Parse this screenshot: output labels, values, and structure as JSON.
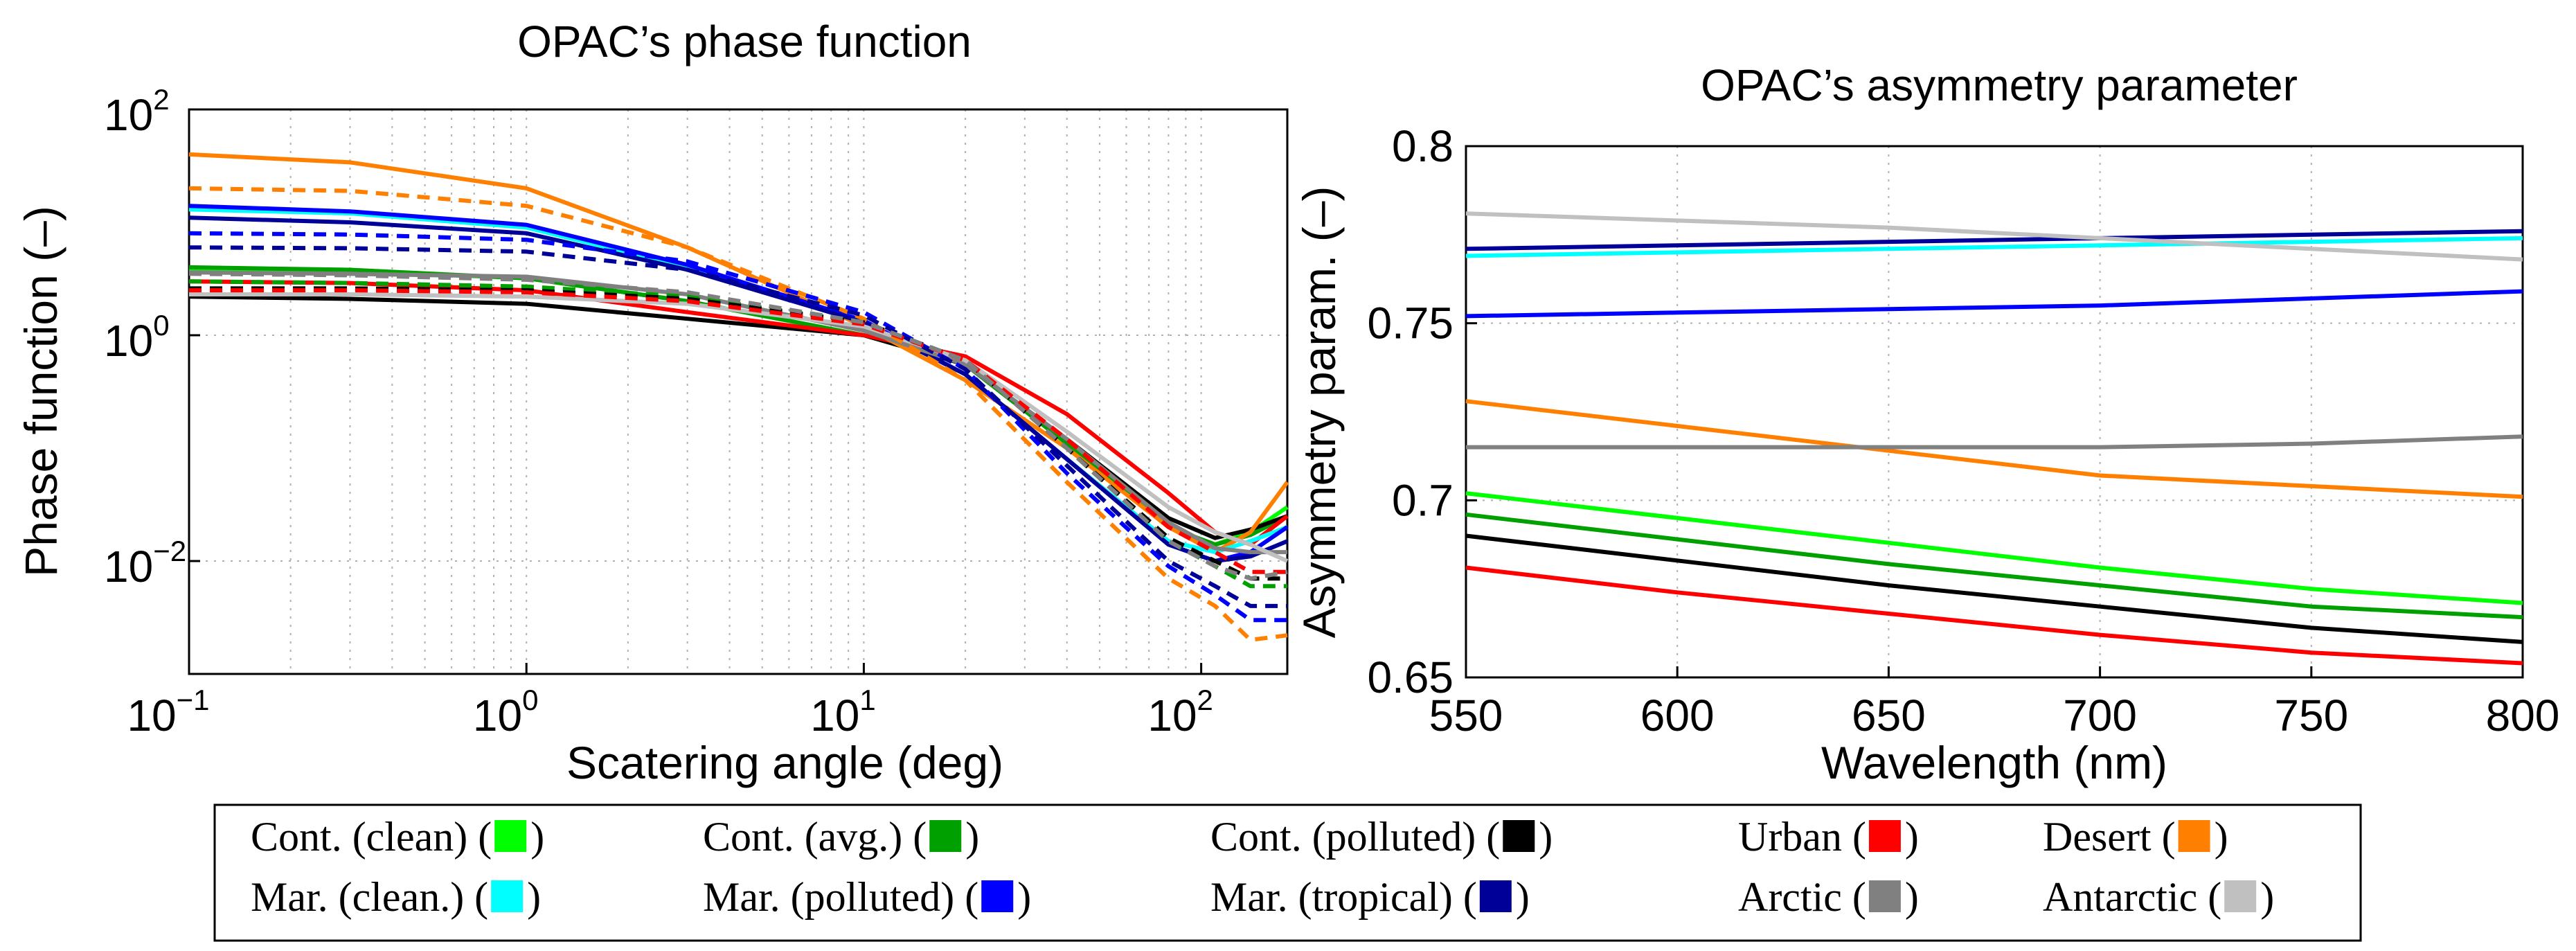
{
  "chart_data": [
    {
      "type": "line",
      "title": "OPAC’s phase function",
      "xlabel": "Scatering angle (deg)",
      "ylabel": "Phase function (–)",
      "xscale": "log",
      "yscale": "log",
      "xlim": [
        0.1,
        180
      ],
      "ylim": [
        0.001,
        100
      ],
      "xticks": [
        {
          "value": 0.1,
          "base": "10",
          "exp": "−1"
        },
        {
          "value": 1,
          "base": "10",
          "exp": "0"
        },
        {
          "value": 10,
          "base": "10",
          "exp": "1"
        },
        {
          "value": 100,
          "base": "10",
          "exp": "2"
        }
      ],
      "yticks": [
        {
          "value": 0.01,
          "base": "10",
          "exp": "−2"
        },
        {
          "value": 1,
          "base": "10",
          "exp": "0"
        },
        {
          "value": 100,
          "base": "10",
          "exp": "2"
        }
      ],
      "x": [
        0.1,
        0.3,
        1,
        3,
        10,
        20,
        40,
        80,
        110,
        140,
        180
      ],
      "series": [
        {
          "name": "Cont. (clean)",
          "style": "solid",
          "values": [
            3.8,
            3.7,
            3.2,
            2.0,
            1.0,
            0.55,
            0.11,
            0.02,
            0.014,
            0.018,
            0.03
          ]
        },
        {
          "name": "Cont. (avg.)",
          "style": "solid",
          "values": [
            4.0,
            3.8,
            3.2,
            2.0,
            1.0,
            0.55,
            0.11,
            0.02,
            0.014,
            0.017,
            0.025
          ]
        },
        {
          "name": "Cont. (polluted)",
          "style": "solid",
          "values": [
            2.2,
            2.1,
            1.9,
            1.4,
            1.0,
            0.55,
            0.12,
            0.024,
            0.016,
            0.019,
            0.025
          ]
        },
        {
          "name": "Urban",
          "style": "solid",
          "values": [
            3.0,
            2.9,
            2.5,
            1.6,
            1.0,
            0.65,
            0.2,
            0.04,
            0.018,
            0.014,
            0.025
          ]
        },
        {
          "name": "Desert",
          "style": "solid",
          "values": [
            40.0,
            34.0,
            20.0,
            6.0,
            1.2,
            0.4,
            0.1,
            0.02,
            0.012,
            0.018,
            0.05
          ]
        },
        {
          "name": "Mar. (clean.)",
          "style": "solid",
          "values": [
            13.0,
            12.0,
            9.0,
            4.0,
            1.3,
            0.45,
            0.08,
            0.015,
            0.012,
            0.015,
            0.02
          ]
        },
        {
          "name": "Mar. (polluted)",
          "style": "solid",
          "values": [
            14.0,
            12.5,
            9.5,
            4.2,
            1.35,
            0.45,
            0.08,
            0.014,
            0.01,
            0.012,
            0.02
          ]
        },
        {
          "name": "Mar. (tropical)",
          "style": "solid",
          "values": [
            11.0,
            10.0,
            8.0,
            3.8,
            1.3,
            0.45,
            0.08,
            0.014,
            0.01,
            0.011,
            0.015
          ]
        },
        {
          "name": "Arctic",
          "style": "solid",
          "values": [
            3.6,
            3.5,
            3.3,
            2.3,
            1.1,
            0.55,
            0.12,
            0.022,
            0.013,
            0.012,
            0.012
          ]
        },
        {
          "name": "Antarctic",
          "style": "solid",
          "values": [
            2.3,
            2.3,
            2.2,
            1.9,
            1.2,
            0.6,
            0.14,
            0.03,
            0.018,
            0.014,
            0.01
          ]
        },
        {
          "name": "Desert (dashed)",
          "style": "dashed",
          "values": [
            20.0,
            19.0,
            14.0,
            6.0,
            1.4,
            0.4,
            0.05,
            0.007,
            0.004,
            0.002,
            0.0022
          ]
        },
        {
          "name": "Mar. (polluted) (dashed)",
          "style": "dashed",
          "values": [
            8.0,
            7.8,
            7.0,
            4.5,
            1.6,
            0.5,
            0.06,
            0.009,
            0.005,
            0.003,
            0.003
          ]
        },
        {
          "name": "Mar. (tropical) (dashed)",
          "style": "dashed",
          "values": [
            6.0,
            5.9,
            5.5,
            3.8,
            1.5,
            0.5,
            0.07,
            0.01,
            0.006,
            0.004,
            0.004
          ]
        },
        {
          "name": "Cont. (avg.) (dashed)",
          "style": "dashed",
          "values": [
            3.0,
            2.9,
            2.7,
            2.2,
            1.3,
            0.6,
            0.1,
            0.015,
            0.009,
            0.006,
            0.006
          ]
        },
        {
          "name": "Cont. (polluted) (dashed)",
          "style": "dashed",
          "values": [
            2.6,
            2.6,
            2.5,
            2.1,
            1.3,
            0.6,
            0.1,
            0.016,
            0.01,
            0.007,
            0.007
          ]
        },
        {
          "name": "Urban (dashed)",
          "style": "dashed",
          "values": [
            2.5,
            2.5,
            2.4,
            2.0,
            1.25,
            0.6,
            0.12,
            0.02,
            0.012,
            0.008,
            0.008
          ]
        },
        {
          "name": "Arctic (dashed)",
          "style": "dashed",
          "values": [
            3.5,
            3.4,
            3.1,
            2.4,
            1.3,
            0.6,
            0.1,
            0.015,
            0.009,
            0.007,
            0.008
          ]
        }
      ]
    },
    {
      "type": "line",
      "title": "OPAC’s asymmetry parameter",
      "xlabel": "Wavelength (nm)",
      "ylabel": "Asymmetry param. (–)",
      "xlim": [
        550,
        800
      ],
      "ylim": [
        0.65,
        0.8
      ],
      "xticks": [
        "550",
        "600",
        "650",
        "700",
        "750",
        "800"
      ],
      "yticks": [
        "0.65",
        "0.7",
        "0.75",
        "0.8"
      ],
      "x": [
        550,
        600,
        650,
        700,
        750,
        800
      ],
      "series": [
        {
          "name": "Cont. (clean)",
          "values": [
            0.702,
            0.695,
            0.688,
            0.681,
            0.675,
            0.671
          ]
        },
        {
          "name": "Cont. (avg.)",
          "values": [
            0.696,
            0.689,
            0.682,
            0.676,
            0.67,
            0.667
          ]
        },
        {
          "name": "Cont. (polluted)",
          "values": [
            0.69,
            0.683,
            0.676,
            0.67,
            0.664,
            0.66
          ]
        },
        {
          "name": "Urban",
          "values": [
            0.681,
            0.674,
            0.668,
            0.662,
            0.657,
            0.654
          ]
        },
        {
          "name": "Desert",
          "values": [
            0.728,
            0.721,
            0.714,
            0.707,
            0.704,
            0.701
          ]
        },
        {
          "name": "Mar. (clean.)",
          "values": [
            0.769,
            0.77,
            0.771,
            0.772,
            0.773,
            0.774
          ]
        },
        {
          "name": "Mar. (polluted)",
          "values": [
            0.752,
            0.753,
            0.754,
            0.755,
            0.757,
            0.759
          ]
        },
        {
          "name": "Mar. (tropical)",
          "values": [
            0.771,
            0.772,
            0.773,
            0.774,
            0.775,
            0.776
          ]
        },
        {
          "name": "Arctic",
          "values": [
            0.715,
            0.715,
            0.715,
            0.715,
            0.716,
            0.718
          ]
        },
        {
          "name": "Antarctic",
          "values": [
            0.781,
            0.779,
            0.777,
            0.774,
            0.771,
            0.768
          ]
        }
      ]
    }
  ],
  "colors": {
    "Cont. (clean)": "#00ff00",
    "Cont. (avg.)": "#00a000",
    "Cont. (polluted)": "#000000",
    "Urban": "#ff0000",
    "Desert": "#ff8000",
    "Mar. (clean.)": "#00ffff",
    "Mar. (polluted)": "#0000ff",
    "Mar. (tropical)": "#000099",
    "Arctic": "#808080",
    "Antarctic": "#c0c0c0"
  },
  "legend": {
    "placement": "bottom-center",
    "items": [
      {
        "label": "Cont. (clean) (",
        "close": ")",
        "key": "Cont. (clean)"
      },
      {
        "label": "Cont. (avg.) (",
        "close": ")",
        "key": "Cont. (avg.)"
      },
      {
        "label": "Cont. (polluted) (",
        "close": ")",
        "key": "Cont. (polluted)"
      },
      {
        "label": "Urban (",
        "close": ")",
        "key": "Urban"
      },
      {
        "label": "Desert (",
        "close": ")",
        "key": "Desert"
      },
      {
        "label": "Mar. (clean.) (",
        "close": ")",
        "key": "Mar. (clean.)"
      },
      {
        "label": "Mar. (polluted) (",
        "close": ")",
        "key": "Mar. (polluted)"
      },
      {
        "label": "Mar. (tropical) (",
        "close": ")",
        "key": "Mar. (tropical)"
      },
      {
        "label": "Arctic (",
        "close": ")",
        "key": "Arctic"
      },
      {
        "label": "Antarctic (",
        "close": ")",
        "key": "Antarctic"
      }
    ]
  }
}
